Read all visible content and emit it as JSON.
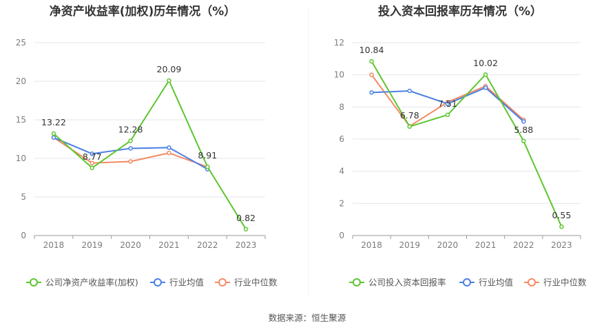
{
  "source": "数据来源：恒生聚源",
  "colors": {
    "company": "#5cc62f",
    "industry_avg": "#4a7fe6",
    "industry_median": "#f38a63",
    "grid": "#e5e5ee",
    "axis": "#9a9a9a"
  },
  "chart_data": [
    {
      "type": "line",
      "title": "净资产收益率(加权)历年情况（%）",
      "categories": [
        "2018",
        "2019",
        "2020",
        "2021",
        "2022",
        "2023"
      ],
      "ylim": [
        0,
        25
      ],
      "yticks": [
        0,
        5,
        10,
        15,
        20,
        25
      ],
      "series": [
        {
          "name": "公司净资产收益率(加权)",
          "key": "company",
          "values": [
            13.22,
            8.77,
            12.28,
            20.09,
            8.91,
            0.82
          ],
          "labels": [
            "13.22",
            "8.77",
            "12.28",
            "20.09",
            "8.91",
            "0.82"
          ]
        },
        {
          "name": "行业均值",
          "key": "industry_avg",
          "values": [
            12.7,
            10.6,
            11.3,
            11.4,
            8.6,
            null
          ]
        },
        {
          "name": "行业中位数",
          "key": "industry_median",
          "values": [
            12.7,
            9.4,
            9.6,
            10.7,
            8.9,
            null
          ]
        }
      ]
    },
    {
      "type": "line",
      "title": "投入资本回报率历年情况（%）",
      "categories": [
        "2018",
        "2019",
        "2020",
        "2021",
        "2022",
        "2023"
      ],
      "ylim": [
        0,
        12
      ],
      "yticks": [
        0,
        2,
        4,
        6,
        8,
        10,
        12
      ],
      "series": [
        {
          "name": "公司投入资本回报率",
          "key": "company",
          "values": [
            10.84,
            6.78,
            7.51,
            10.02,
            5.88,
            0.55
          ],
          "labels": [
            "10.84",
            "6.78",
            "7.51",
            "10.02",
            "5.88",
            "0.55"
          ]
        },
        {
          "name": "行业均值",
          "key": "industry_avg",
          "values": [
            8.9,
            9.0,
            8.2,
            9.2,
            7.1,
            null
          ]
        },
        {
          "name": "行业中位数",
          "key": "industry_median",
          "values": [
            10.0,
            6.8,
            8.3,
            9.3,
            7.2,
            null
          ]
        }
      ]
    }
  ]
}
